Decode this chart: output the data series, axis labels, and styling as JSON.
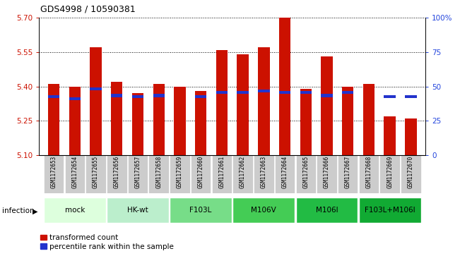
{
  "title": "GDS4998 / 10590381",
  "samples": [
    "GSM1172653",
    "GSM1172654",
    "GSM1172655",
    "GSM1172656",
    "GSM1172657",
    "GSM1172658",
    "GSM1172659",
    "GSM1172660",
    "GSM1172661",
    "GSM1172662",
    "GSM1172663",
    "GSM1172664",
    "GSM1172665",
    "GSM1172666",
    "GSM1172667",
    "GSM1172668",
    "GSM1172669",
    "GSM1172670"
  ],
  "red_values": [
    5.41,
    5.4,
    5.57,
    5.42,
    5.37,
    5.41,
    5.4,
    5.38,
    5.56,
    5.54,
    5.57,
    5.7,
    5.39,
    5.53,
    5.4,
    5.41,
    5.27,
    5.26
  ],
  "blue_values": [
    5.355,
    5.345,
    5.39,
    5.36,
    5.355,
    5.36,
    null,
    5.355,
    5.375,
    5.375,
    5.38,
    5.375,
    5.375,
    5.36,
    5.375,
    null,
    5.355,
    5.355
  ],
  "y_min": 5.1,
  "y_max": 5.7,
  "y_ticks_left": [
    5.1,
    5.25,
    5.4,
    5.55,
    5.7
  ],
  "y_ticks_right": [
    0,
    25,
    50,
    75,
    100
  ],
  "bar_color": "#cc1100",
  "blue_color": "#2233cc",
  "bar_width": 0.55,
  "group_labels": [
    "mock",
    "HK-wt",
    "F103L",
    "M106V",
    "M106I",
    "F103L+M106I"
  ],
  "group_ranges": [
    [
      0,
      2
    ],
    [
      3,
      5
    ],
    [
      6,
      8
    ],
    [
      9,
      11
    ],
    [
      12,
      14
    ],
    [
      15,
      17
    ]
  ],
  "group_colors": [
    "#ddffdd",
    "#bbeecc",
    "#77dd88",
    "#44cc55",
    "#22bb44",
    "#11aa33"
  ],
  "label_bg": "#cccccc",
  "fig_bg": "#ffffff"
}
